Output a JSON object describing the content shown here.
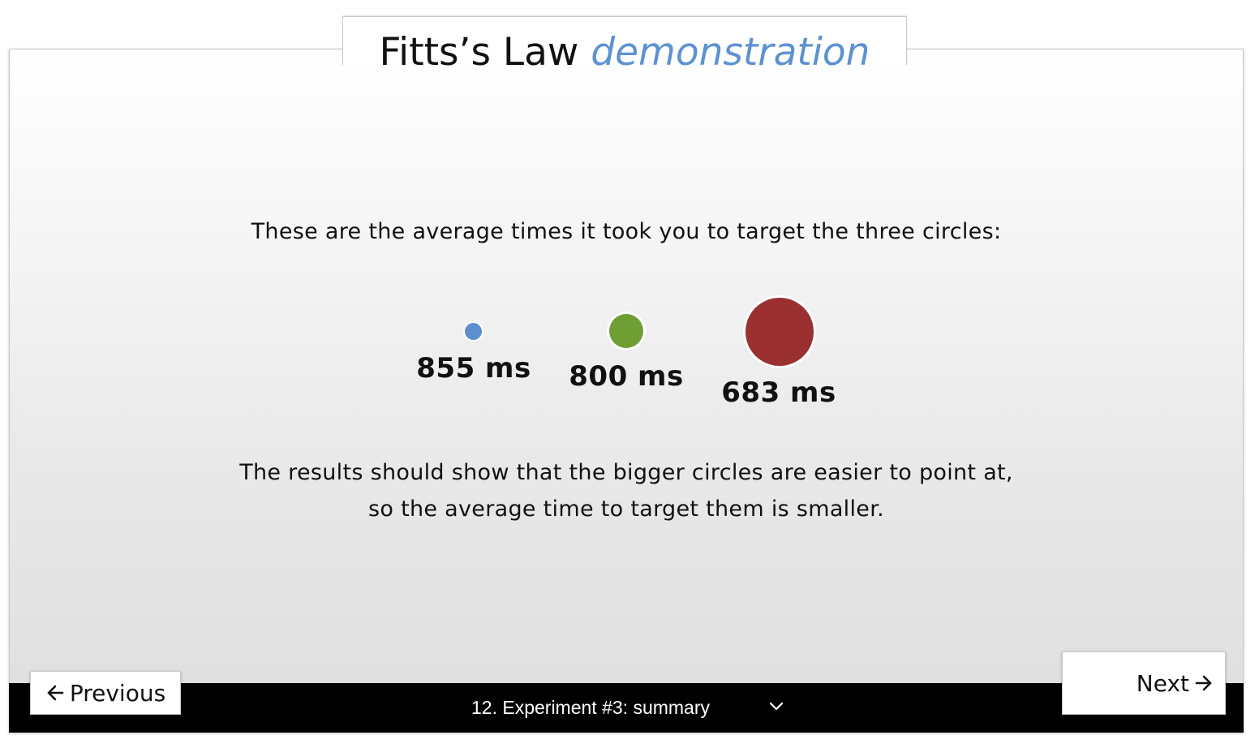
{
  "header": {
    "title_main": "Fitts’s Law",
    "title_accent": "demonstration"
  },
  "content": {
    "intro": "These are the average times it took you to target the three circles:",
    "circles": [
      {
        "size": "small",
        "color": "#5b8fd0",
        "time": "855 ms"
      },
      {
        "size": "medium",
        "color": "#6f9e35",
        "time": "800 ms"
      },
      {
        "size": "large",
        "color": "#9a3030",
        "time": "683 ms"
      }
    ],
    "result_line1": "The results should show that the bigger circles are easier to point at,",
    "result_line2": "so the average time to target them is smaller."
  },
  "footer": {
    "previous_label": "Previous",
    "next_label": "Next",
    "section_select": "12. Experiment #3: summary"
  },
  "icons": {
    "previous": "arrow-left-icon",
    "next": "arrow-right-icon",
    "select": "chevron-down-icon"
  },
  "colors": {
    "accent": "#5d92d1",
    "footer_bar": "#000000"
  }
}
